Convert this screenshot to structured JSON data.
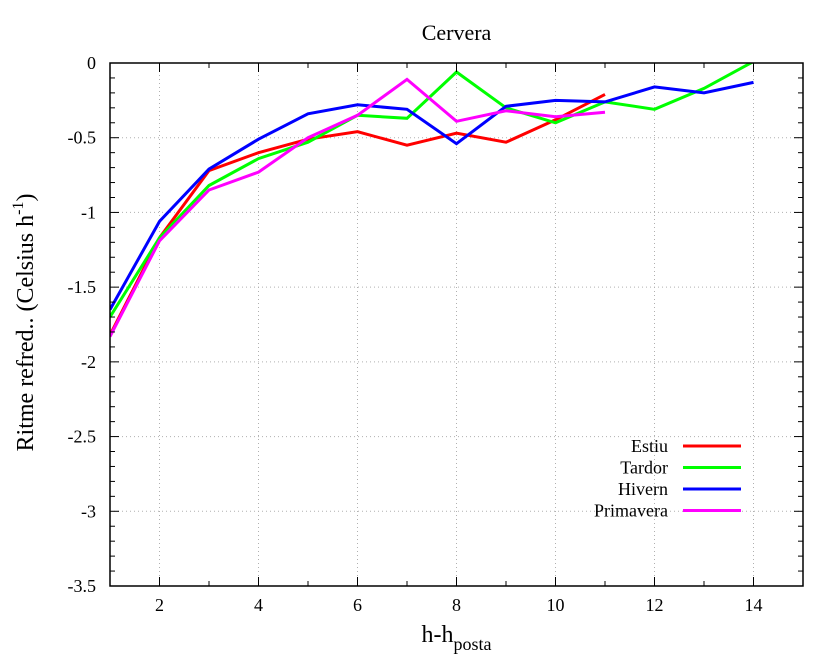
{
  "chart_data": {
    "type": "line",
    "title": "Cervera",
    "xlabel_main": "h-h",
    "xlabel_sub": "posta",
    "ylabel_main": "Ritme refred.. (Celsius h",
    "ylabel_sup": "-1",
    "ylabel_close": ")",
    "xlim": [
      1,
      15
    ],
    "ylim": [
      -3.5,
      0
    ],
    "xticks": [
      2,
      4,
      6,
      8,
      10,
      12,
      14
    ],
    "xtick_labels": [
      "2",
      "4",
      "6",
      "8",
      "10",
      "12",
      "14"
    ],
    "yticks": [
      0,
      -0.5,
      -1,
      -1.5,
      -2,
      -2.5,
      -3,
      -3.5
    ],
    "ytick_labels": [
      "0",
      "-0.5",
      "-1",
      "-1.5",
      "-2",
      "-2.5",
      "-3",
      "-3.5"
    ],
    "grid": true,
    "legend_position": "bottom-right",
    "series": [
      {
        "name": "Estiu",
        "color": "#ff0000",
        "x": [
          1,
          2,
          3,
          4,
          5,
          6,
          7,
          8,
          9,
          10,
          11
        ],
        "y": [
          -1.82,
          -1.17,
          -0.72,
          -0.6,
          -0.51,
          -0.46,
          -0.55,
          -0.47,
          -0.53,
          -0.38,
          -0.21
        ]
      },
      {
        "name": "Tardor",
        "color": "#00ff00",
        "x": [
          1,
          2,
          3,
          4,
          5,
          6,
          7,
          8,
          9,
          10,
          11,
          12,
          13,
          14
        ],
        "y": [
          -1.7,
          -1.17,
          -0.82,
          -0.64,
          -0.53,
          -0.35,
          -0.37,
          -0.06,
          -0.3,
          -0.4,
          -0.26,
          -0.31,
          -0.17,
          0.01
        ]
      },
      {
        "name": "Hivern",
        "color": "#0000ff",
        "x": [
          1,
          2,
          3,
          4,
          5,
          6,
          7,
          8,
          9,
          10,
          11,
          12,
          13,
          14
        ],
        "y": [
          -1.65,
          -1.06,
          -0.71,
          -0.51,
          -0.34,
          -0.28,
          -0.31,
          -0.54,
          -0.29,
          -0.25,
          -0.26,
          -0.16,
          -0.2,
          -0.13
        ]
      },
      {
        "name": "Primavera",
        "color": "#ff00ff",
        "x": [
          1,
          2,
          3,
          4,
          5,
          6,
          7,
          8,
          9,
          10,
          11
        ],
        "y": [
          -1.83,
          -1.19,
          -0.85,
          -0.73,
          -0.5,
          -0.35,
          -0.11,
          -0.39,
          -0.32,
          -0.36,
          -0.33
        ]
      }
    ]
  }
}
